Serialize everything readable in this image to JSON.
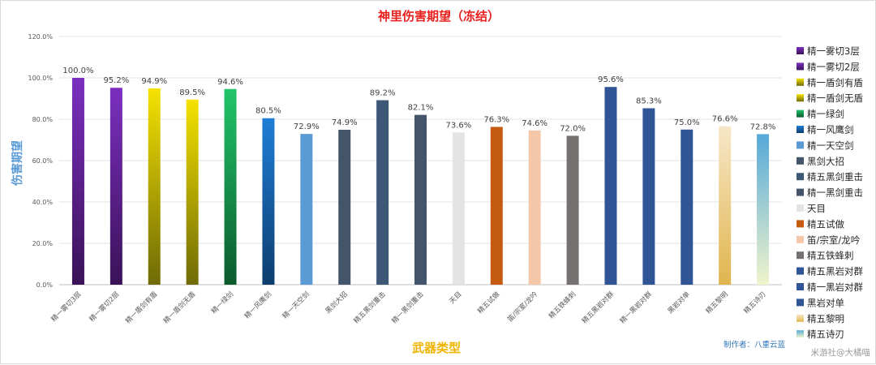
{
  "chart_data": {
    "type": "bar",
    "title": "神里伤害期望（冻结）",
    "xlabel": "武器类型",
    "ylabel": "伤害期望",
    "ylim": [
      0,
      120
    ],
    "yticks": [
      "0.0%",
      "20.0%",
      "40.0%",
      "60.0%",
      "80.0%",
      "100.0%",
      "120.0%"
    ],
    "grid": true,
    "legend": "right",
    "categories": [
      "精一雾切3层",
      "精一雾切2层",
      "精一盾剑有盾",
      "精一盾剑无盾",
      "精一绿剑",
      "精一风鹰剑",
      "精一天空剑",
      "黑剑大招",
      "精五黑剑重击",
      "精一黑剑重击",
      "天目",
      "精五试做",
      "笛/宗室/龙吟",
      "精五铁蜂刺",
      "精五黑岩对群",
      "精一黑岩对群",
      "黑岩对单",
      "精五黎明",
      "精五诗刃"
    ],
    "values": [
      100.0,
      95.2,
      94.9,
      89.5,
      94.6,
      80.5,
      72.9,
      74.9,
      89.2,
      82.1,
      73.6,
      76.3,
      74.6,
      72.0,
      95.6,
      85.3,
      75.0,
      76.6,
      72.8
    ],
    "labels": [
      "100.0%",
      "95.2%",
      "94.9%",
      "89.5%",
      "94.6%",
      "80.5%",
      "72.9%",
      "74.9%",
      "89.2%",
      "82.1%",
      "73.6%",
      "76.3%",
      "74.6%",
      "72.0%",
      "95.6%",
      "85.3%",
      "75.0%",
      "76.6%",
      "72.8%"
    ],
    "colors": [
      [
        "#7b2fbf",
        "#3a1258"
      ],
      [
        "#7b2fbf",
        "#3a1258"
      ],
      [
        "#f5e200",
        "#6f6a06"
      ],
      [
        "#f5e200",
        "#6f6a06"
      ],
      [
        "#21c46a",
        "#0b5a2c"
      ],
      [
        "#1f7ed6",
        "#0d3d6e"
      ],
      [
        "#5b9bd5",
        "#5b9bd5"
      ],
      [
        "#44546a",
        "#44546a"
      ],
      [
        "#3d5877",
        "#3d5877"
      ],
      [
        "#44546a",
        "#44546a"
      ],
      [
        "#e4e4e4",
        "#e4e4e4"
      ],
      [
        "#c55a11",
        "#c55a11"
      ],
      [
        "#f4c7a9",
        "#f4c7a9"
      ],
      [
        "#767171",
        "#767171"
      ],
      [
        "#2f5597",
        "#2f5597"
      ],
      [
        "#2f5597",
        "#2f5597"
      ],
      [
        "#2f5597",
        "#2f5597"
      ],
      [
        "#f7e7c8",
        "#e0b54e"
      ],
      [
        "#56a9d8",
        "#f0f4cc"
      ]
    ]
  },
  "credit": "制作者：八重云蓝",
  "watermark": "米游社@大橘喵"
}
